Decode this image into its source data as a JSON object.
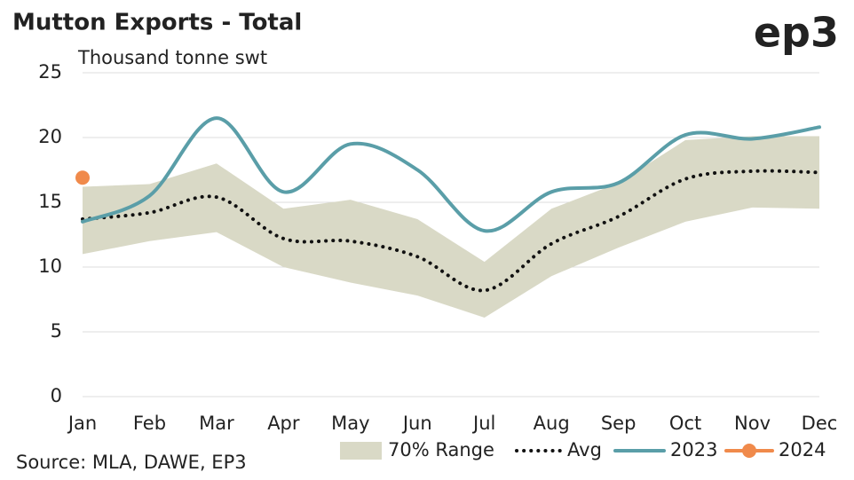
{
  "chart_data": {
    "type": "line",
    "title": "Mutton Exports - Total",
    "y_label": "Thousand tonne swt",
    "logo": "ep3",
    "source": "Source: MLA, DAWE, EP3",
    "categories": [
      "Jan",
      "Feb",
      "Mar",
      "Apr",
      "May",
      "Jun",
      "Jul",
      "Aug",
      "Sep",
      "Oct",
      "Nov",
      "Dec"
    ],
    "ylim": [
      0,
      25
    ],
    "yticks": [
      0,
      5,
      10,
      15,
      20,
      25
    ],
    "grid": true,
    "legend": "bottom",
    "series": [
      {
        "name": "70% Range",
        "style": "band",
        "color": "#d9d9c6",
        "low": [
          11.0,
          12.0,
          12.7,
          10.0,
          8.8,
          7.8,
          6.1,
          9.3,
          11.5,
          13.5,
          14.6,
          14.5
        ],
        "high": [
          16.2,
          16.4,
          18.0,
          14.5,
          15.2,
          13.7,
          10.4,
          14.5,
          16.5,
          19.8,
          20.1,
          20.1
        ]
      },
      {
        "name": "Avg",
        "style": "dotted",
        "color": "#111111",
        "values": [
          13.7,
          14.2,
          15.4,
          12.2,
          12.0,
          10.8,
          8.2,
          11.8,
          13.9,
          16.8,
          17.4,
          17.3
        ]
      },
      {
        "name": "2023",
        "style": "solid",
        "color": "#5a9ea8",
        "values": [
          13.5,
          15.5,
          21.5,
          15.8,
          19.5,
          17.5,
          12.8,
          15.8,
          16.5,
          20.2,
          19.9,
          20.8
        ]
      },
      {
        "name": "2024",
        "style": "marker",
        "color": "#f08a4b",
        "values": [
          16.9,
          null,
          null,
          null,
          null,
          null,
          null,
          null,
          null,
          null,
          null,
          null
        ]
      }
    ]
  }
}
